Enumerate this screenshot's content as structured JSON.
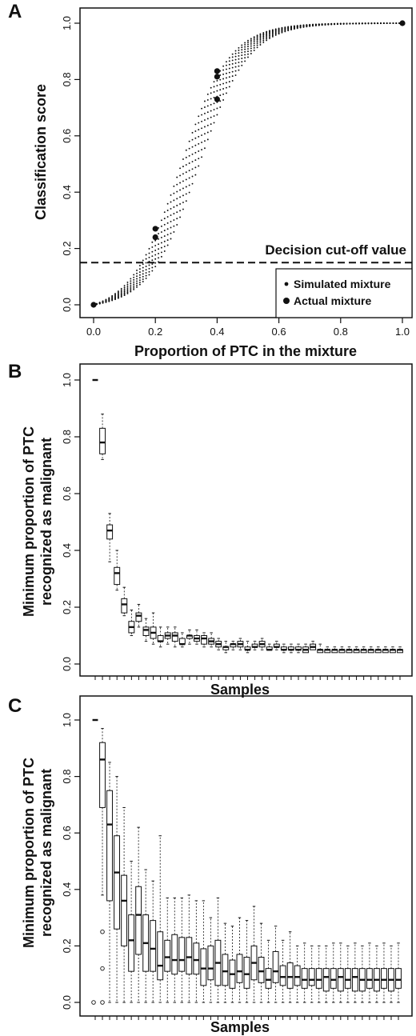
{
  "chart_data": [
    {
      "panel": "A",
      "type": "scatter",
      "xlabel": "Proportion of PTC in the mixture",
      "ylabel": "Classification score",
      "xlim": [
        0,
        1
      ],
      "ylim": [
        0,
        1
      ],
      "xticks": [
        "0.0",
        "0.2",
        "0.4",
        "0.6",
        "0.8",
        "1.0"
      ],
      "yticks": [
        "0.0",
        "0.2",
        "0.4",
        "0.6",
        "0.8",
        "1.0"
      ],
      "cutoff": {
        "value": 0.15,
        "label": "Decision cut-off value"
      },
      "legend": {
        "position": "bottom-right",
        "entries": [
          "Simulated mixture",
          "Actual mixture"
        ]
      },
      "simulated_curves": {
        "count": 8,
        "x_step": 0.01,
        "midpoint_range": [
          0.28,
          0.34
        ],
        "steepness": 12.5
      },
      "actual_points": [
        {
          "x": 0.0,
          "y": 0.0
        },
        {
          "x": 0.2,
          "y": 0.27
        },
        {
          "x": 0.2,
          "y": 0.24
        },
        {
          "x": 0.4,
          "y": 0.83
        },
        {
          "x": 0.4,
          "y": 0.81
        },
        {
          "x": 0.4,
          "y": 0.73
        },
        {
          "x": 1.0,
          "y": 1.0
        }
      ]
    },
    {
      "panel": "B",
      "type": "box",
      "xlabel": "Samples",
      "ylabel": [
        "Minimum proportion of PTC",
        "recognized as malignant"
      ],
      "ylim": [
        0,
        1
      ],
      "yticks": [
        "0.0",
        "0.2",
        "0.4",
        "0.6",
        "0.8",
        "1.0"
      ],
      "boxes": [
        {
          "min": 1.0,
          "q1": 1.0,
          "median": 1.0,
          "q3": 1.0,
          "max": 1.0
        },
        {
          "min": 0.72,
          "q1": 0.74,
          "median": 0.78,
          "q3": 0.83,
          "max": 0.88
        },
        {
          "min": 0.36,
          "q1": 0.44,
          "median": 0.47,
          "q3": 0.49,
          "max": 0.53
        },
        {
          "min": 0.26,
          "q1": 0.28,
          "median": 0.32,
          "q3": 0.34,
          "max": 0.4
        },
        {
          "min": 0.17,
          "q1": 0.18,
          "median": 0.21,
          "q3": 0.23,
          "max": 0.27
        },
        {
          "min": 0.1,
          "q1": 0.11,
          "median": 0.13,
          "q3": 0.15,
          "max": 0.19
        },
        {
          "min": 0.13,
          "q1": 0.15,
          "median": 0.17,
          "q3": 0.18,
          "max": 0.21
        },
        {
          "min": 0.08,
          "q1": 0.1,
          "median": 0.12,
          "q3": 0.13,
          "max": 0.16
        },
        {
          "min": 0.07,
          "q1": 0.09,
          "median": 0.11,
          "q3": 0.13,
          "max": 0.18
        },
        {
          "min": 0.06,
          "q1": 0.08,
          "median": 0.08,
          "q3": 0.1,
          "max": 0.13
        },
        {
          "min": 0.07,
          "q1": 0.09,
          "median": 0.1,
          "q3": 0.11,
          "max": 0.13
        },
        {
          "min": 0.06,
          "q1": 0.08,
          "median": 0.1,
          "q3": 0.11,
          "max": 0.13
        },
        {
          "min": 0.06,
          "q1": 0.07,
          "median": 0.07,
          "q3": 0.09,
          "max": 0.11
        },
        {
          "min": 0.07,
          "q1": 0.09,
          "median": 0.1,
          "q3": 0.1,
          "max": 0.12
        },
        {
          "min": 0.07,
          "q1": 0.08,
          "median": 0.09,
          "q3": 0.1,
          "max": 0.12
        },
        {
          "min": 0.06,
          "q1": 0.07,
          "median": 0.09,
          "q3": 0.1,
          "max": 0.11
        },
        {
          "min": 0.06,
          "q1": 0.07,
          "median": 0.08,
          "q3": 0.09,
          "max": 0.11
        },
        {
          "min": 0.05,
          "q1": 0.06,
          "median": 0.07,
          "q3": 0.08,
          "max": 0.09
        },
        {
          "min": 0.04,
          "q1": 0.05,
          "median": 0.06,
          "q3": 0.06,
          "max": 0.08
        },
        {
          "min": 0.05,
          "q1": 0.06,
          "median": 0.07,
          "q3": 0.07,
          "max": 0.08
        },
        {
          "min": 0.05,
          "q1": 0.06,
          "median": 0.07,
          "q3": 0.08,
          "max": 0.09
        },
        {
          "min": 0.04,
          "q1": 0.05,
          "median": 0.05,
          "q3": 0.06,
          "max": 0.08
        },
        {
          "min": 0.05,
          "q1": 0.06,
          "median": 0.06,
          "q3": 0.07,
          "max": 0.08
        },
        {
          "min": 0.05,
          "q1": 0.06,
          "median": 0.07,
          "q3": 0.08,
          "max": 0.09
        },
        {
          "min": 0.05,
          "q1": 0.05,
          "median": 0.05,
          "q3": 0.06,
          "max": 0.07
        },
        {
          "min": 0.05,
          "q1": 0.06,
          "median": 0.06,
          "q3": 0.07,
          "max": 0.08
        },
        {
          "min": 0.04,
          "q1": 0.05,
          "median": 0.05,
          "q3": 0.06,
          "max": 0.07
        },
        {
          "min": 0.04,
          "q1": 0.05,
          "median": 0.05,
          "q3": 0.06,
          "max": 0.07
        },
        {
          "min": 0.04,
          "q1": 0.05,
          "median": 0.05,
          "q3": 0.06,
          "max": 0.07
        },
        {
          "min": 0.04,
          "q1": 0.04,
          "median": 0.05,
          "q3": 0.06,
          "max": 0.07
        },
        {
          "min": 0.05,
          "q1": 0.05,
          "median": 0.06,
          "q3": 0.07,
          "max": 0.08
        },
        {
          "min": 0.04,
          "q1": 0.04,
          "median": 0.05,
          "q3": 0.05,
          "max": 0.07
        },
        {
          "min": 0.04,
          "q1": 0.04,
          "median": 0.05,
          "q3": 0.05,
          "max": 0.06
        },
        {
          "min": 0.04,
          "q1": 0.04,
          "median": 0.05,
          "q3": 0.05,
          "max": 0.06
        },
        {
          "min": 0.04,
          "q1": 0.04,
          "median": 0.05,
          "q3": 0.05,
          "max": 0.06
        },
        {
          "min": 0.04,
          "q1": 0.04,
          "median": 0.05,
          "q3": 0.05,
          "max": 0.06
        },
        {
          "min": 0.04,
          "q1": 0.04,
          "median": 0.05,
          "q3": 0.05,
          "max": 0.06
        },
        {
          "min": 0.04,
          "q1": 0.04,
          "median": 0.05,
          "q3": 0.05,
          "max": 0.06
        },
        {
          "min": 0.04,
          "q1": 0.04,
          "median": 0.05,
          "q3": 0.05,
          "max": 0.06
        },
        {
          "min": 0.04,
          "q1": 0.04,
          "median": 0.05,
          "q3": 0.05,
          "max": 0.06
        },
        {
          "min": 0.04,
          "q1": 0.04,
          "median": 0.05,
          "q3": 0.05,
          "max": 0.06
        },
        {
          "min": 0.04,
          "q1": 0.04,
          "median": 0.05,
          "q3": 0.05,
          "max": 0.06
        },
        {
          "min": 0.04,
          "q1": 0.04,
          "median": 0.05,
          "q3": 0.05,
          "max": 0.06
        }
      ]
    },
    {
      "panel": "C",
      "type": "box",
      "xlabel": "Samples",
      "ylabel": [
        "Minimum proportion of PTC",
        "recognized as malignant"
      ],
      "ylim": [
        0,
        1
      ],
      "yticks": [
        "0.0",
        "0.2",
        "0.4",
        "0.6",
        "0.8",
        "1.0"
      ],
      "boxes": [
        {
          "min": 1.0,
          "q1": 1.0,
          "median": 1.0,
          "q3": 1.0,
          "max": 1.0,
          "outliers": [
            0.0
          ]
        },
        {
          "min": 0.38,
          "q1": 0.69,
          "median": 0.86,
          "q3": 0.92,
          "max": 0.97,
          "outliers": [
            0.25,
            0.12,
            0.0
          ]
        },
        {
          "min": 0.0,
          "q1": 0.36,
          "median": 0.63,
          "q3": 0.75,
          "max": 0.85
        },
        {
          "min": 0.0,
          "q1": 0.26,
          "median": 0.46,
          "q3": 0.59,
          "max": 0.8
        },
        {
          "min": 0.0,
          "q1": 0.2,
          "median": 0.36,
          "q3": 0.45,
          "max": 0.69
        },
        {
          "min": 0.0,
          "q1": 0.11,
          "median": 0.22,
          "q3": 0.31,
          "max": 0.5
        },
        {
          "min": 0.0,
          "q1": 0.17,
          "median": 0.31,
          "q3": 0.41,
          "max": 0.62
        },
        {
          "min": 0.0,
          "q1": 0.11,
          "median": 0.21,
          "q3": 0.31,
          "max": 0.47
        },
        {
          "min": 0.0,
          "q1": 0.11,
          "median": 0.19,
          "q3": 0.29,
          "max": 0.43
        },
        {
          "min": 0.0,
          "q1": 0.08,
          "median": 0.13,
          "q3": 0.25,
          "max": 0.59
        },
        {
          "min": 0.0,
          "q1": 0.11,
          "median": 0.16,
          "q3": 0.22,
          "max": 0.37
        },
        {
          "min": 0.0,
          "q1": 0.1,
          "median": 0.15,
          "q3": 0.24,
          "max": 0.37
        },
        {
          "min": 0.0,
          "q1": 0.11,
          "median": 0.15,
          "q3": 0.23,
          "max": 0.37
        },
        {
          "min": 0.0,
          "q1": 0.1,
          "median": 0.16,
          "q3": 0.23,
          "max": 0.38
        },
        {
          "min": 0.0,
          "q1": 0.1,
          "median": 0.15,
          "q3": 0.21,
          "max": 0.36
        },
        {
          "min": 0.0,
          "q1": 0.06,
          "median": 0.12,
          "q3": 0.19,
          "max": 0.36
        },
        {
          "min": 0.0,
          "q1": 0.08,
          "median": 0.12,
          "q3": 0.2,
          "max": 0.3
        },
        {
          "min": 0.0,
          "q1": 0.06,
          "median": 0.14,
          "q3": 0.22,
          "max": 0.37
        },
        {
          "min": 0.0,
          "q1": 0.06,
          "median": 0.11,
          "q3": 0.17,
          "max": 0.28
        },
        {
          "min": 0.0,
          "q1": 0.05,
          "median": 0.1,
          "q3": 0.15,
          "max": 0.27
        },
        {
          "min": 0.0,
          "q1": 0.07,
          "median": 0.11,
          "q3": 0.17,
          "max": 0.3
        },
        {
          "min": 0.0,
          "q1": 0.05,
          "median": 0.1,
          "q3": 0.16,
          "max": 0.29
        },
        {
          "min": 0.0,
          "q1": 0.08,
          "median": 0.14,
          "q3": 0.2,
          "max": 0.34
        },
        {
          "min": 0.0,
          "q1": 0.07,
          "median": 0.11,
          "q3": 0.16,
          "max": 0.28
        },
        {
          "min": 0.0,
          "q1": 0.05,
          "median": 0.08,
          "q3": 0.12,
          "max": 0.22
        },
        {
          "min": 0.0,
          "q1": 0.07,
          "median": 0.11,
          "q3": 0.18,
          "max": 0.27
        },
        {
          "min": 0.0,
          "q1": 0.06,
          "median": 0.09,
          "q3": 0.13,
          "max": 0.22
        },
        {
          "min": 0.0,
          "q1": 0.05,
          "median": 0.09,
          "q3": 0.14,
          "max": 0.25
        },
        {
          "min": 0.0,
          "q1": 0.06,
          "median": 0.09,
          "q3": 0.13,
          "max": 0.2
        },
        {
          "min": 0.0,
          "q1": 0.05,
          "median": 0.08,
          "q3": 0.12,
          "max": 0.21
        },
        {
          "min": 0.0,
          "q1": 0.06,
          "median": 0.08,
          "q3": 0.12,
          "max": 0.2
        },
        {
          "min": 0.0,
          "q1": 0.05,
          "median": 0.08,
          "q3": 0.12,
          "max": 0.2
        },
        {
          "min": 0.0,
          "q1": 0.04,
          "median": 0.09,
          "q3": 0.12,
          "max": 0.2
        },
        {
          "min": 0.0,
          "q1": 0.05,
          "median": 0.08,
          "q3": 0.12,
          "max": 0.21
        },
        {
          "min": 0.0,
          "q1": 0.04,
          "median": 0.09,
          "q3": 0.12,
          "max": 0.21
        },
        {
          "min": 0.0,
          "q1": 0.05,
          "median": 0.08,
          "q3": 0.12,
          "max": 0.2
        },
        {
          "min": 0.0,
          "q1": 0.04,
          "median": 0.09,
          "q3": 0.12,
          "max": 0.21
        },
        {
          "min": 0.0,
          "q1": 0.04,
          "median": 0.08,
          "q3": 0.12,
          "max": 0.2
        },
        {
          "min": 0.0,
          "q1": 0.05,
          "median": 0.08,
          "q3": 0.12,
          "max": 0.21
        },
        {
          "min": 0.0,
          "q1": 0.04,
          "median": 0.08,
          "q3": 0.12,
          "max": 0.2
        },
        {
          "min": 0.0,
          "q1": 0.05,
          "median": 0.08,
          "q3": 0.12,
          "max": 0.21
        },
        {
          "min": 0.0,
          "q1": 0.04,
          "median": 0.08,
          "q3": 0.12,
          "max": 0.2
        },
        {
          "min": 0.0,
          "q1": 0.05,
          "median": 0.08,
          "q3": 0.12,
          "max": 0.21
        }
      ]
    }
  ]
}
